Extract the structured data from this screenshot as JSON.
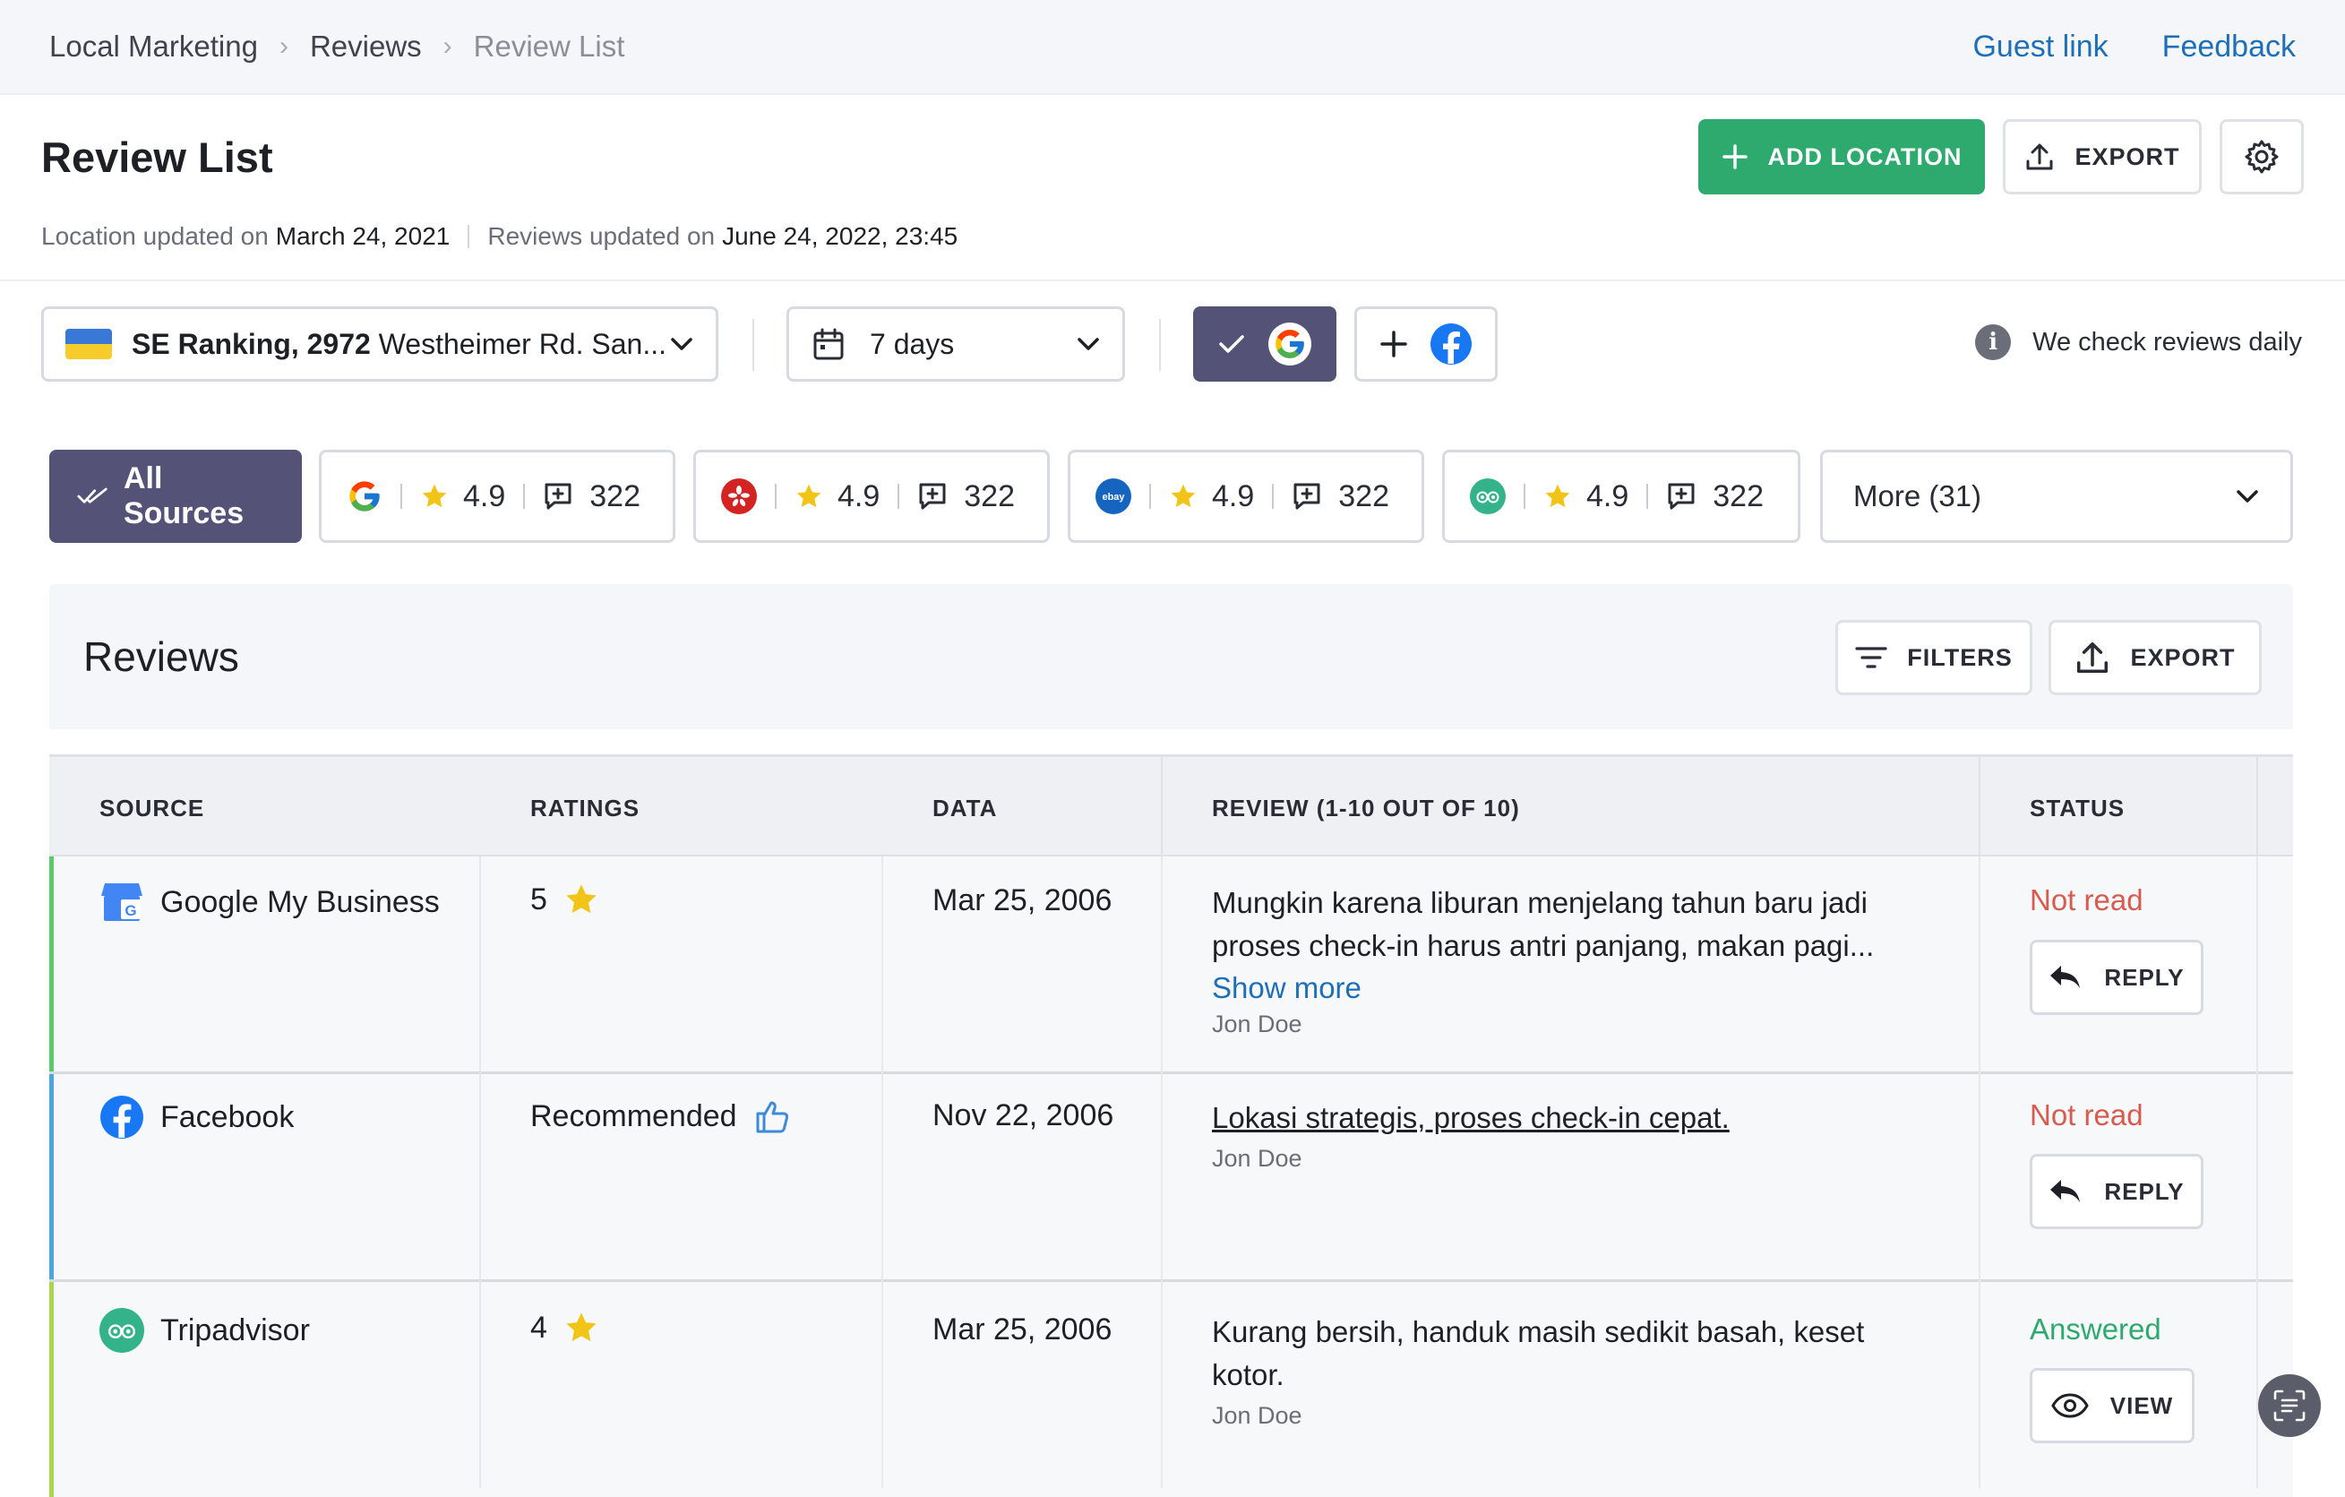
{
  "breadcrumbs": [
    "Local Marketing",
    "Reviews",
    "Review List"
  ],
  "top_links": {
    "guest": "Guest link",
    "feedback": "Feedback"
  },
  "header": {
    "title": "Review List",
    "location_updated_label": "Location updated on",
    "location_updated_value": "March 24, 2021",
    "reviews_updated_label": "Reviews updated on",
    "reviews_updated_value": "June 24, 2022, 23:45",
    "add_location": "ADD LOCATION",
    "export": "EXPORT"
  },
  "filters": {
    "location_bold": "SE Ranking, 2972",
    "location_rest": " Westheimer Rd. San...",
    "period": "7 days",
    "daily_note": "We check reviews daily"
  },
  "sources": {
    "all": "All Sources",
    "chips": [
      {
        "icon": "google-icon",
        "rating": "4.9",
        "count": "322"
      },
      {
        "icon": "yelp-icon",
        "rating": "4.9",
        "count": "322"
      },
      {
        "icon": "ebay-icon",
        "rating": "4.9",
        "count": "322"
      },
      {
        "icon": "tripadvisor-icon",
        "rating": "4.9",
        "count": "322"
      }
    ],
    "more": "More (31)"
  },
  "reviews": {
    "title": "Reviews",
    "filters_btn": "FILTERS",
    "export_btn": "EXPORT",
    "columns": [
      "SOURCE",
      "RATINGS",
      "DATA",
      "REVIEW (1-10 OUT OF 10)",
      "STATUS"
    ],
    "rows": [
      {
        "source": "Google My Business",
        "rating": "5",
        "date": "Mar 25, 2006",
        "text": "Mungkin karena liburan menjelang tahun baru jadi proses check-in harus antri panjang, makan pagi...",
        "show_more": "Show more",
        "author": "Jon Doe",
        "status": "Not read",
        "action": "REPLY"
      },
      {
        "source": "Facebook",
        "rating": "Recommended",
        "date": "Nov 22, 2006",
        "text": "Lokasi strategis, proses check-in cepat.",
        "author": "Jon Doe",
        "status": "Not read",
        "action": "REPLY"
      },
      {
        "source": "Tripadvisor",
        "rating": "4",
        "date": "Mar 25, 2006",
        "text": "Kurang bersih, handuk masih sedikit basah, keset kotor.",
        "author": "Jon Doe",
        "status": "Answered",
        "action": "VIEW"
      }
    ]
  },
  "colors": {
    "accent_green": "#2eaa6e",
    "accent_purple": "#555277",
    "link_blue": "#1d6fb8",
    "status_not_read": "#d95a4e",
    "star_yellow": "#f2c417"
  }
}
